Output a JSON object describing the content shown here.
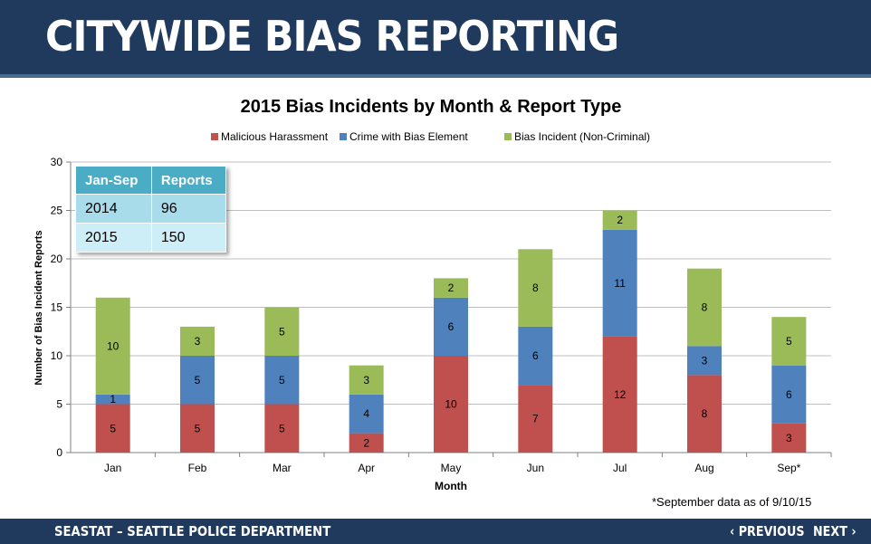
{
  "header": {
    "title": "CITYWIDE BIAS REPORTING"
  },
  "footer": {
    "org": "SEASTAT – SEATTLE POLICE DEPARTMENT",
    "prev_label": "‹ PREVIOUS",
    "next_label": "NEXT ›"
  },
  "summary_table": {
    "headers": [
      "Jan-Sep",
      "Reports"
    ],
    "rows": [
      [
        "2014",
        "96"
      ],
      [
        "2015",
        "150"
      ]
    ]
  },
  "footnote": "*September data as of 9/10/15",
  "chart_data": {
    "type": "bar",
    "stacked": true,
    "title": "2015 Bias Incidents by Month & Report Type",
    "xlabel": "Month",
    "ylabel": "Number of Bias Incident Reports",
    "ylim": [
      0,
      30
    ],
    "yticks": [
      0,
      5,
      10,
      15,
      20,
      25,
      30
    ],
    "grid": true,
    "legend": "top",
    "categories": [
      "Jan",
      "Feb",
      "Mar",
      "Apr",
      "May",
      "Jun",
      "Jul",
      "Aug",
      "Sep*"
    ],
    "series": [
      {
        "name": "Malicious Harassment",
        "color": "#c0504d",
        "values": [
          5,
          5,
          5,
          2,
          10,
          7,
          12,
          8,
          3
        ]
      },
      {
        "name": "Crime with Bias Element",
        "color": "#4f81bd",
        "values": [
          1,
          5,
          5,
          4,
          6,
          6,
          11,
          3,
          6
        ]
      },
      {
        "name": "Bias Incident (Non-Criminal)",
        "color": "#9bbb59",
        "values": [
          10,
          3,
          5,
          3,
          2,
          8,
          2,
          8,
          5
        ]
      }
    ]
  }
}
